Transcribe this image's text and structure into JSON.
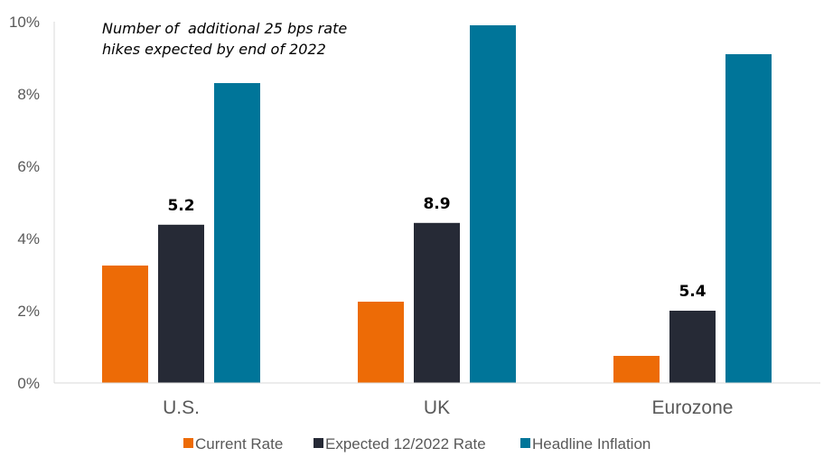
{
  "chart_data": {
    "type": "bar",
    "title": "",
    "annotation": [
      "Number of  additional 25 bps rate",
      "hikes expected by end of 2022"
    ],
    "categories": [
      "U.S.",
      "UK",
      "Eurozone"
    ],
    "series": [
      {
        "name": "Current Rate",
        "color": "#ED6B06",
        "values": [
          3.25,
          2.25,
          0.75
        ]
      },
      {
        "name": "Expected 12/2022 Rate",
        "color": "#262A36",
        "values": [
          4.38,
          4.43,
          2.0
        ]
      },
      {
        "name": "Headline Inflation",
        "color": "#007599",
        "values": [
          8.3,
          9.9,
          9.1
        ]
      }
    ],
    "data_labels": {
      "series": "Expected 12/2022 Rate",
      "values": [
        "5.2",
        "8.9",
        "5.4"
      ]
    },
    "y_ticks": [
      "0%",
      "2%",
      "4%",
      "6%",
      "8%",
      "10%"
    ],
    "ylim": [
      0,
      10
    ],
    "xlabel": "",
    "ylabel": "",
    "grid": false,
    "legend_position": "bottom"
  }
}
